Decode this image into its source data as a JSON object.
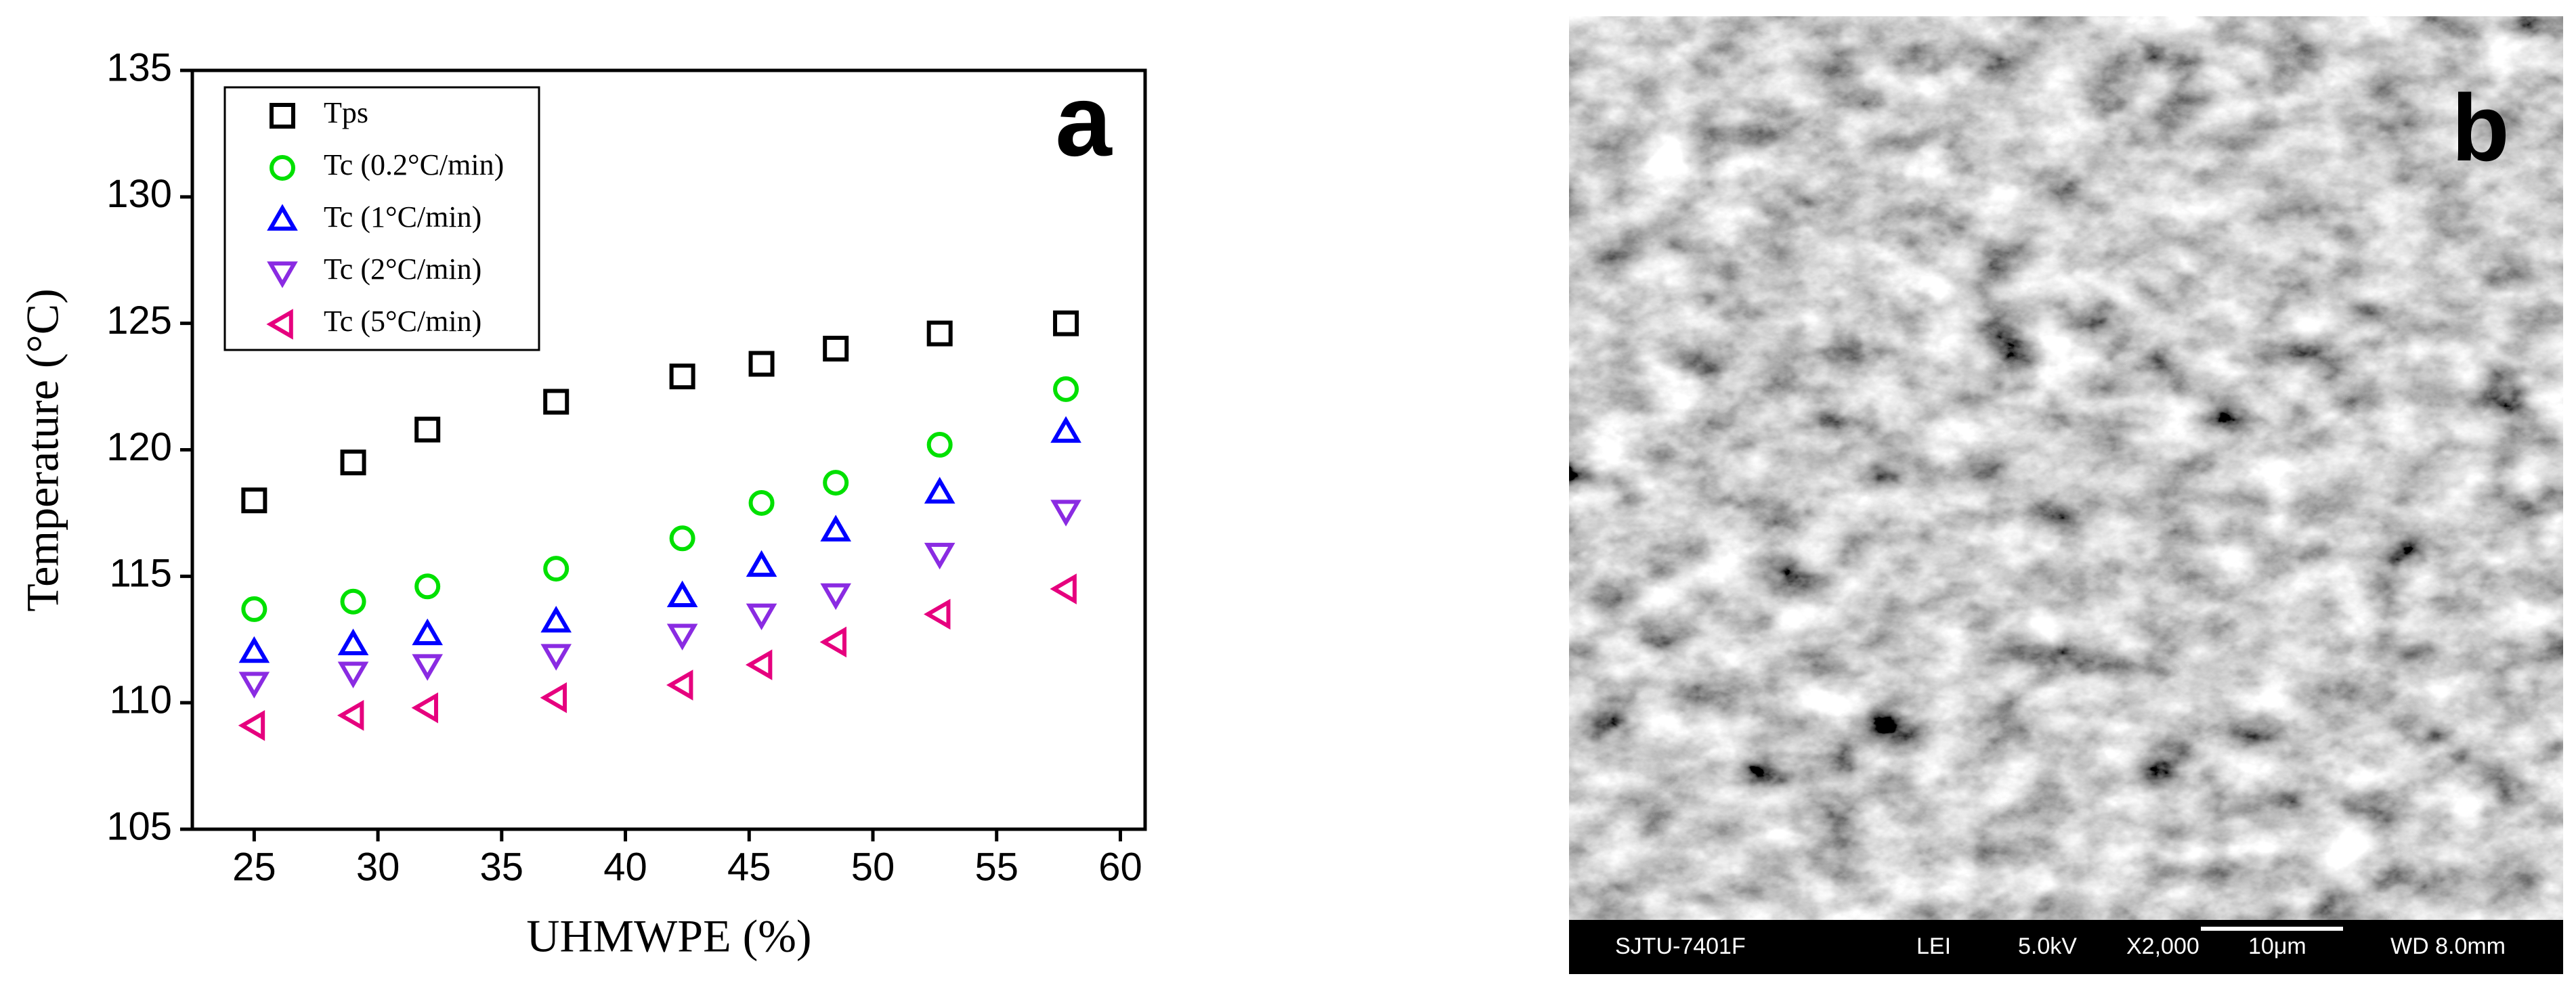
{
  "chart_data": {
    "type": "scatter",
    "x_label": "UHMWPE (%)",
    "y_label": "Temperature (°C)",
    "panel_label": "a",
    "xlim": [
      22.5,
      61
    ],
    "ylim": [
      105,
      135
    ],
    "xticks": [
      25,
      30,
      35,
      40,
      45,
      50,
      55,
      60
    ],
    "yticks": [
      105,
      110,
      115,
      120,
      125,
      130,
      135
    ],
    "legend": "upper left",
    "x": [
      25,
      29,
      32,
      37.2,
      42.3,
      45.5,
      48.5,
      52.7,
      57.8
    ],
    "series": [
      {
        "name": "Tps",
        "color": "#000000",
        "marker": "square",
        "values": [
          118,
          119.5,
          120.8,
          121.9,
          122.9,
          123.4,
          124,
          124.6,
          125
        ]
      },
      {
        "name": "Tc (0.2°C/min)",
        "color": "#00e000",
        "marker": "circle",
        "values": [
          113.7,
          114,
          114.6,
          115.3,
          116.5,
          117.9,
          118.7,
          120.2,
          122.4
        ]
      },
      {
        "name": "Tc (1°C/min)",
        "color": "#0000ff",
        "marker": "triangle-up",
        "values": [
          112,
          112.3,
          112.7,
          113.2,
          114.2,
          115.4,
          116.8,
          118.3,
          120.7
        ]
      },
      {
        "name": "Tc (2°C/min)",
        "color": "#8a2be2",
        "marker": "triangle-down",
        "values": [
          110.8,
          111.2,
          111.5,
          111.9,
          112.7,
          113.5,
          114.3,
          115.9,
          117.6
        ]
      },
      {
        "name": "Tc (5°C/min)",
        "color": "#e6007e",
        "marker": "triangle-left",
        "values": [
          109.1,
          109.5,
          109.8,
          110.2,
          110.7,
          111.5,
          112.4,
          113.5,
          114.5
        ]
      }
    ]
  },
  "image": {
    "panel_label": "b",
    "info_bar": [
      "SJTU-7401F",
      "LEI",
      "5.0kV",
      "X2,000",
      "10μm",
      "WD 8.0mm"
    ]
  }
}
